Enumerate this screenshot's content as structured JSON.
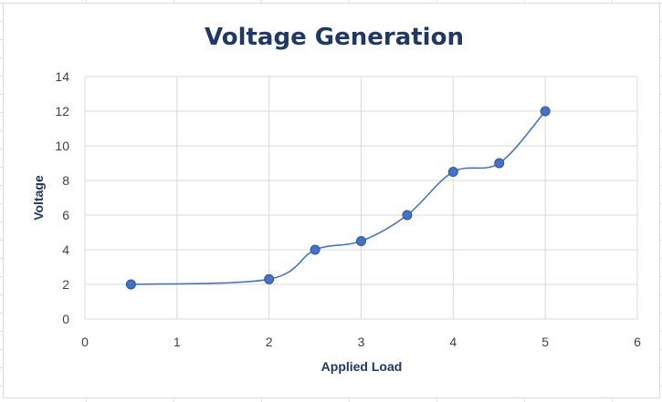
{
  "chart_data": {
    "type": "line",
    "title": "Voltage Generation",
    "xlabel": "Applied Load",
    "ylabel": "Voltage",
    "xlim": [
      0,
      6
    ],
    "ylim": [
      0,
      14
    ],
    "xticks": [
      0,
      1,
      2,
      3,
      4,
      5,
      6
    ],
    "yticks": [
      0,
      2,
      4,
      6,
      8,
      10,
      12,
      14
    ],
    "grid": true,
    "smooth": true,
    "legend": "none",
    "series": [
      {
        "x": [
          0.5,
          2,
          2.5,
          3,
          3.5,
          4,
          4.5,
          5
        ],
        "y": [
          2,
          2.3,
          4,
          4.5,
          6,
          8.5,
          9,
          12
        ],
        "color": "#4472c4"
      }
    ]
  }
}
